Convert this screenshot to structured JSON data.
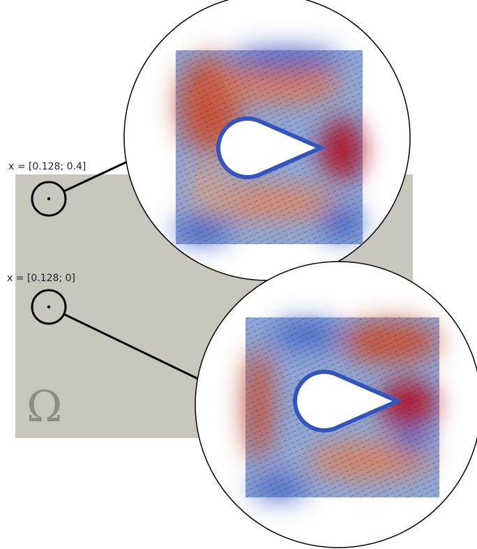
{
  "point_labels": [
    "x = [0.128; 0.4]",
    "x = [0.128; 0]"
  ],
  "domain_label": "Ω"
}
